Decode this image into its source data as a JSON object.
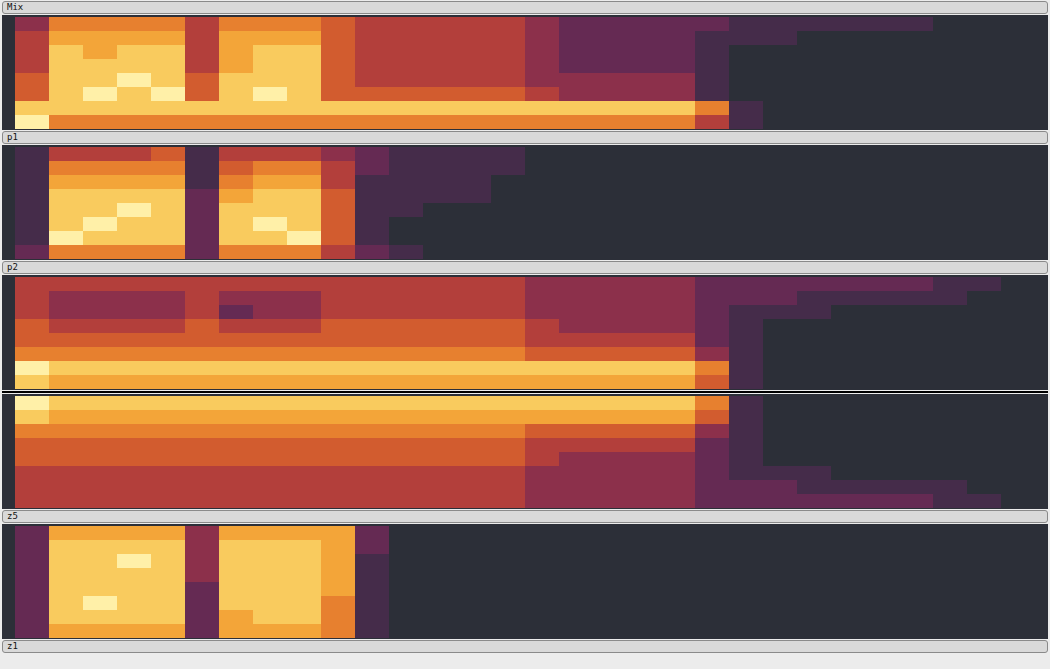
{
  "chart_data": [
    {
      "type": "heatmap",
      "title": "Mix",
      "zlim": [
        0,
        9
      ],
      "tick_labels": false,
      "cells": [
        [
          3,
          6,
          6,
          6,
          6,
          4,
          6,
          6,
          6,
          5,
          4,
          4,
          4,
          4,
          4,
          3,
          2,
          2,
          2,
          2,
          2,
          1,
          1,
          1,
          1,
          1,
          1,
          0,
          0,
          0
        ],
        [
          4,
          7,
          7,
          7,
          7,
          4,
          7,
          7,
          7,
          5,
          4,
          4,
          4,
          4,
          4,
          3,
          2,
          2,
          2,
          2,
          1,
          1,
          1,
          0,
          0,
          0,
          0,
          0,
          0,
          0
        ],
        [
          4,
          8,
          7,
          8,
          8,
          4,
          7,
          8,
          8,
          5,
          4,
          4,
          4,
          4,
          4,
          3,
          2,
          2,
          2,
          2,
          1,
          0,
          0,
          0,
          0,
          0,
          0,
          0,
          0,
          0
        ],
        [
          4,
          8,
          8,
          8,
          8,
          4,
          7,
          8,
          8,
          5,
          4,
          4,
          4,
          4,
          4,
          3,
          2,
          2,
          2,
          2,
          1,
          0,
          0,
          0,
          0,
          0,
          0,
          0,
          0,
          0
        ],
        [
          5,
          8,
          8,
          9,
          8,
          5,
          8,
          8,
          8,
          5,
          4,
          4,
          4,
          4,
          4,
          3,
          3,
          3,
          3,
          3,
          1,
          0,
          0,
          0,
          0,
          0,
          0,
          0,
          0,
          0
        ],
        [
          5,
          8,
          9,
          8,
          9,
          5,
          8,
          9,
          8,
          5,
          5,
          5,
          5,
          5,
          5,
          4,
          3,
          3,
          3,
          3,
          1,
          0,
          0,
          0,
          0,
          0,
          0,
          0,
          0,
          0
        ],
        [
          8,
          8,
          8,
          8,
          8,
          8,
          8,
          8,
          8,
          8,
          8,
          8,
          8,
          8,
          8,
          8,
          8,
          8,
          8,
          8,
          6,
          1,
          0,
          0,
          0,
          0,
          0,
          0,
          0,
          0
        ],
        [
          9,
          6,
          6,
          6,
          6,
          6,
          6,
          6,
          6,
          6,
          6,
          6,
          6,
          6,
          6,
          6,
          6,
          6,
          6,
          6,
          4,
          1,
          0,
          0,
          0,
          0,
          0,
          0,
          0,
          0
        ]
      ]
    },
    {
      "type": "heatmap",
      "title": "p1",
      "zlim": [
        0,
        9
      ],
      "tick_labels": false,
      "cells": [
        [
          1,
          4,
          4,
          4,
          5,
          1,
          4,
          4,
          4,
          3,
          2,
          1,
          1,
          1,
          1,
          0,
          0,
          0,
          0,
          0,
          0,
          0,
          0,
          0,
          0,
          0,
          0,
          0,
          0,
          0
        ],
        [
          1,
          6,
          6,
          6,
          6,
          1,
          5,
          6,
          6,
          4,
          2,
          1,
          1,
          1,
          1,
          0,
          0,
          0,
          0,
          0,
          0,
          0,
          0,
          0,
          0,
          0,
          0,
          0,
          0,
          0
        ],
        [
          1,
          7,
          7,
          7,
          7,
          1,
          6,
          7,
          7,
          4,
          1,
          1,
          1,
          1,
          0,
          0,
          0,
          0,
          0,
          0,
          0,
          0,
          0,
          0,
          0,
          0,
          0,
          0,
          0,
          0
        ],
        [
          1,
          8,
          8,
          8,
          8,
          2,
          7,
          8,
          8,
          5,
          1,
          1,
          1,
          1,
          0,
          0,
          0,
          0,
          0,
          0,
          0,
          0,
          0,
          0,
          0,
          0,
          0,
          0,
          0,
          0
        ],
        [
          1,
          8,
          8,
          9,
          8,
          2,
          8,
          8,
          8,
          5,
          1,
          1,
          0,
          0,
          0,
          0,
          0,
          0,
          0,
          0,
          0,
          0,
          0,
          0,
          0,
          0,
          0,
          0,
          0,
          0
        ],
        [
          1,
          8,
          9,
          8,
          8,
          2,
          8,
          9,
          8,
          5,
          1,
          0,
          0,
          0,
          0,
          0,
          0,
          0,
          0,
          0,
          0,
          0,
          0,
          0,
          0,
          0,
          0,
          0,
          0,
          0
        ],
        [
          1,
          9,
          8,
          8,
          8,
          2,
          8,
          8,
          9,
          5,
          1,
          0,
          0,
          0,
          0,
          0,
          0,
          0,
          0,
          0,
          0,
          0,
          0,
          0,
          0,
          0,
          0,
          0,
          0,
          0
        ],
        [
          2,
          6,
          6,
          6,
          6,
          2,
          6,
          6,
          6,
          4,
          2,
          1,
          0,
          0,
          0,
          0,
          0,
          0,
          0,
          0,
          0,
          0,
          0,
          0,
          0,
          0,
          0,
          0,
          0,
          0
        ]
      ]
    },
    {
      "type": "heatmap",
      "title": "p2",
      "zlim": [
        0,
        9
      ],
      "tick_labels": false,
      "cells": [
        [
          4,
          4,
          4,
          4,
          4,
          4,
          4,
          4,
          4,
          4,
          4,
          4,
          4,
          4,
          4,
          3,
          3,
          3,
          3,
          3,
          2,
          2,
          2,
          2,
          2,
          2,
          2,
          1,
          1,
          0
        ],
        [
          4,
          3,
          3,
          3,
          3,
          4,
          3,
          3,
          3,
          4,
          4,
          4,
          4,
          4,
          4,
          3,
          3,
          3,
          3,
          3,
          2,
          2,
          2,
          1,
          1,
          1,
          1,
          1,
          0,
          0
        ],
        [
          4,
          3,
          3,
          3,
          3,
          4,
          2,
          3,
          3,
          4,
          4,
          4,
          4,
          4,
          4,
          3,
          3,
          3,
          3,
          3,
          2,
          1,
          1,
          1,
          0,
          0,
          0,
          0,
          0,
          0
        ],
        [
          5,
          4,
          4,
          4,
          4,
          5,
          4,
          4,
          4,
          5,
          5,
          5,
          5,
          5,
          5,
          4,
          3,
          3,
          3,
          3,
          2,
          1,
          0,
          0,
          0,
          0,
          0,
          0,
          0,
          0
        ],
        [
          5,
          5,
          5,
          5,
          5,
          5,
          5,
          5,
          5,
          5,
          5,
          5,
          5,
          5,
          5,
          4,
          4,
          4,
          4,
          4,
          2,
          1,
          0,
          0,
          0,
          0,
          0,
          0,
          0,
          0
        ],
        [
          6,
          6,
          6,
          6,
          6,
          6,
          6,
          6,
          6,
          6,
          6,
          6,
          6,
          6,
          6,
          5,
          5,
          5,
          5,
          5,
          3,
          1,
          0,
          0,
          0,
          0,
          0,
          0,
          0,
          0
        ],
        [
          9,
          8,
          8,
          8,
          8,
          8,
          8,
          8,
          8,
          8,
          8,
          8,
          8,
          8,
          8,
          8,
          8,
          8,
          8,
          8,
          6,
          1,
          0,
          0,
          0,
          0,
          0,
          0,
          0,
          0
        ],
        [
          8,
          7,
          7,
          7,
          7,
          7,
          7,
          7,
          7,
          7,
          7,
          7,
          7,
          7,
          7,
          7,
          7,
          7,
          7,
          7,
          5,
          1,
          0,
          0,
          0,
          0,
          0,
          0,
          0,
          0
        ]
      ]
    },
    {
      "type": "heatmap",
      "title": "z5",
      "zlim": [
        0,
        9
      ],
      "tick_labels": false,
      "cells": [
        [
          9,
          8,
          8,
          8,
          8,
          8,
          8,
          8,
          8,
          8,
          8,
          8,
          8,
          8,
          8,
          8,
          8,
          8,
          8,
          8,
          6,
          1,
          0,
          0,
          0,
          0,
          0,
          0,
          0,
          0
        ],
        [
          8,
          7,
          7,
          7,
          7,
          7,
          7,
          7,
          7,
          7,
          7,
          7,
          7,
          7,
          7,
          7,
          7,
          7,
          7,
          7,
          5,
          1,
          0,
          0,
          0,
          0,
          0,
          0,
          0,
          0
        ],
        [
          6,
          6,
          6,
          6,
          6,
          6,
          6,
          6,
          6,
          6,
          6,
          6,
          6,
          6,
          6,
          5,
          5,
          5,
          5,
          5,
          3,
          1,
          0,
          0,
          0,
          0,
          0,
          0,
          0,
          0
        ],
        [
          5,
          5,
          5,
          5,
          5,
          5,
          5,
          5,
          5,
          5,
          5,
          5,
          5,
          5,
          5,
          4,
          4,
          4,
          4,
          4,
          2,
          1,
          0,
          0,
          0,
          0,
          0,
          0,
          0,
          0
        ],
        [
          5,
          5,
          5,
          5,
          5,
          5,
          5,
          5,
          5,
          5,
          5,
          5,
          5,
          5,
          5,
          4,
          3,
          3,
          3,
          3,
          2,
          1,
          0,
          0,
          0,
          0,
          0,
          0,
          0,
          0
        ],
        [
          4,
          4,
          4,
          4,
          4,
          4,
          4,
          4,
          4,
          4,
          4,
          4,
          4,
          4,
          4,
          3,
          3,
          3,
          3,
          3,
          2,
          1,
          1,
          1,
          0,
          0,
          0,
          0,
          0,
          0
        ],
        [
          4,
          4,
          4,
          4,
          4,
          4,
          4,
          4,
          4,
          4,
          4,
          4,
          4,
          4,
          4,
          3,
          3,
          3,
          3,
          3,
          2,
          2,
          2,
          1,
          1,
          1,
          1,
          1,
          0,
          0
        ],
        [
          4,
          4,
          4,
          4,
          4,
          4,
          4,
          4,
          4,
          4,
          4,
          4,
          4,
          4,
          4,
          3,
          3,
          3,
          3,
          3,
          2,
          2,
          2,
          2,
          2,
          2,
          2,
          1,
          1,
          0
        ]
      ]
    },
    {
      "type": "heatmap",
      "title": "z1",
      "zlim": [
        0,
        9
      ],
      "tick_labels": false,
      "cells": [
        [
          2,
          7,
          7,
          7,
          7,
          3,
          7,
          7,
          7,
          7,
          2,
          0,
          0,
          0,
          0,
          0,
          0,
          0,
          0,
          0,
          0,
          0,
          0,
          0,
          0,
          0,
          0,
          0,
          0,
          0
        ],
        [
          2,
          8,
          8,
          8,
          8,
          3,
          8,
          8,
          8,
          7,
          2,
          0,
          0,
          0,
          0,
          0,
          0,
          0,
          0,
          0,
          0,
          0,
          0,
          0,
          0,
          0,
          0,
          0,
          0,
          0
        ],
        [
          2,
          8,
          8,
          9,
          8,
          3,
          8,
          8,
          8,
          7,
          1,
          0,
          0,
          0,
          0,
          0,
          0,
          0,
          0,
          0,
          0,
          0,
          0,
          0,
          0,
          0,
          0,
          0,
          0,
          0
        ],
        [
          2,
          8,
          8,
          8,
          8,
          3,
          8,
          8,
          8,
          7,
          1,
          0,
          0,
          0,
          0,
          0,
          0,
          0,
          0,
          0,
          0,
          0,
          0,
          0,
          0,
          0,
          0,
          0,
          0,
          0
        ],
        [
          2,
          8,
          8,
          8,
          8,
          2,
          8,
          8,
          8,
          7,
          1,
          0,
          0,
          0,
          0,
          0,
          0,
          0,
          0,
          0,
          0,
          0,
          0,
          0,
          0,
          0,
          0,
          0,
          0,
          0
        ],
        [
          2,
          8,
          9,
          8,
          8,
          2,
          8,
          8,
          8,
          6,
          1,
          0,
          0,
          0,
          0,
          0,
          0,
          0,
          0,
          0,
          0,
          0,
          0,
          0,
          0,
          0,
          0,
          0,
          0,
          0
        ],
        [
          2,
          8,
          8,
          8,
          8,
          2,
          7,
          8,
          8,
          6,
          1,
          0,
          0,
          0,
          0,
          0,
          0,
          0,
          0,
          0,
          0,
          0,
          0,
          0,
          0,
          0,
          0,
          0,
          0,
          0
        ],
        [
          2,
          7,
          7,
          7,
          7,
          2,
          7,
          7,
          7,
          6,
          1,
          0,
          0,
          0,
          0,
          0,
          0,
          0,
          0,
          0,
          0,
          0,
          0,
          0,
          0,
          0,
          0,
          0,
          0,
          0
        ]
      ]
    }
  ]
}
